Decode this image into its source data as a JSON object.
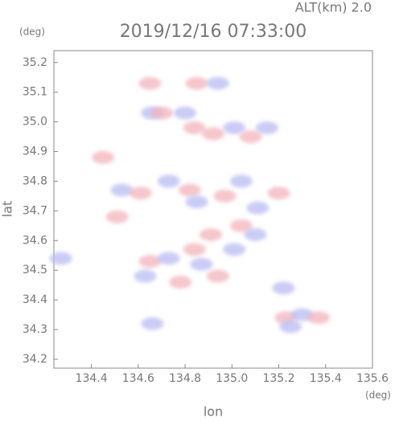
{
  "chart_data": {
    "type": "scatter",
    "title": "2019/12/16 07:33:00",
    "subtitle": "ALT(km) 2.0",
    "x_label": "lon",
    "y_label": "lat",
    "x_unit": "(deg)",
    "y_unit": "(deg)",
    "x": [
      134.65,
      134.66,
      134.85,
      134.94,
      134.7,
      134.8,
      134.92,
      135.01,
      135.08,
      135.15,
      134.84,
      134.53,
      134.61,
      134.73,
      134.82,
      134.85,
      134.97,
      135.04,
      135.2,
      135.11,
      135.04,
      135.01,
      134.91,
      135.1,
      134.65,
      134.73,
      134.84,
      134.87,
      134.94,
      134.63,
      134.78,
      134.27,
      134.51,
      134.66,
      135.23,
      135.3,
      135.37,
      135.25,
      134.45,
      135.22
    ],
    "y": [
      35.13,
      35.03,
      35.13,
      35.13,
      35.03,
      35.03,
      34.96,
      34.98,
      34.95,
      34.98,
      34.98,
      34.77,
      34.76,
      34.8,
      34.77,
      34.73,
      34.75,
      34.8,
      34.76,
      34.71,
      34.65,
      34.57,
      34.62,
      34.62,
      34.53,
      34.54,
      34.57,
      34.52,
      34.48,
      34.48,
      34.46,
      34.54,
      34.68,
      34.32,
      34.34,
      34.35,
      34.34,
      34.31,
      34.88,
      34.44
    ],
    "colors": [
      "#f2b4bc",
      "#b9bcf2"
    ],
    "xlim": [
      134.24,
      135.6
    ],
    "ylim": [
      34.17,
      35.24
    ],
    "xticks": [
      134.4,
      134.6,
      134.8,
      {
        "value": 135.0,
        "label": "135.0"
      },
      135.2,
      135.4,
      135.6
    ],
    "yticks": [
      34.2,
      34.3,
      34.4,
      34.5,
      34.6,
      34.7,
      34.8,
      34.9,
      {
        "value": 35.0,
        "label": "35.0"
      },
      35.1,
      35.2
    ]
  }
}
